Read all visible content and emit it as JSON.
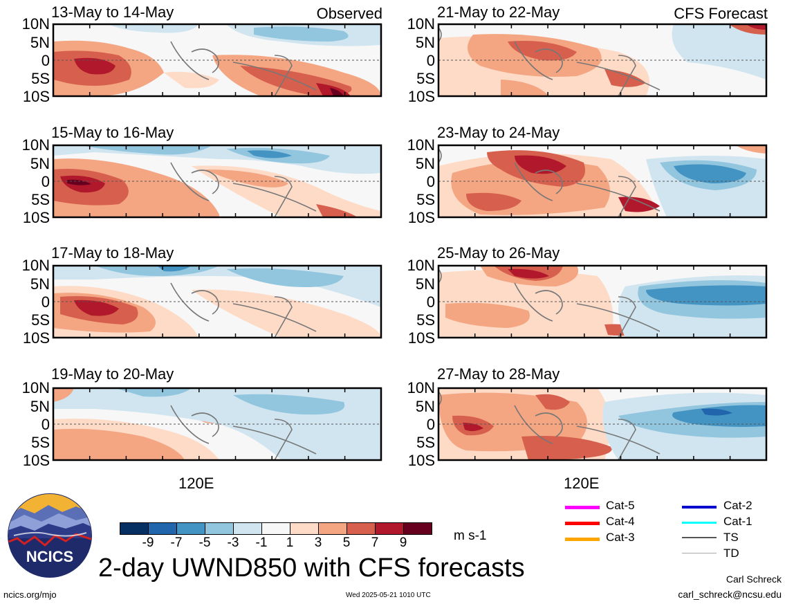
{
  "panels": [
    {
      "id": "obs1",
      "title": "13-May to 14-May",
      "tag": "Observed"
    },
    {
      "id": "obs2",
      "title": "15-May to 16-May",
      "tag": ""
    },
    {
      "id": "obs3",
      "title": "17-May to 18-May",
      "tag": ""
    },
    {
      "id": "obs4",
      "title": "19-May to 20-May",
      "tag": ""
    },
    {
      "id": "fc1",
      "title": "21-May to 22-May",
      "tag": "CFS Forecast"
    },
    {
      "id": "fc2",
      "title": "23-May to 24-May",
      "tag": ""
    },
    {
      "id": "fc3",
      "title": "25-May to 26-May",
      "tag": ""
    },
    {
      "id": "fc4",
      "title": "27-May to 28-May",
      "tag": ""
    }
  ],
  "lat_labels": [
    "10N",
    "5N",
    "0",
    "5S",
    "10S"
  ],
  "lon_label": "120E",
  "colorbar": {
    "colors": [
      "#053061",
      "#2166ac",
      "#4393c3",
      "#92c5de",
      "#d1e5f0",
      "#f7f7f7",
      "#fddbc7",
      "#f4a582",
      "#d6604d",
      "#b2182b",
      "#67001f"
    ],
    "ticks": [
      "-9",
      "-7",
      "-5",
      "-3",
      "-1",
      "1",
      "3",
      "5",
      "7",
      "9"
    ],
    "units": "m s-1"
  },
  "legend": [
    {
      "label": "Cat-5",
      "color": "#ff00ff"
    },
    {
      "label": "Cat-4",
      "color": "#ff0000"
    },
    {
      "label": "Cat-3",
      "color": "#ffa500"
    },
    {
      "label": "Cat-2",
      "color": "#0000cd"
    },
    {
      "label": "Cat-1",
      "color": "#00ffff"
    },
    {
      "label": "TS",
      "color": "#555555"
    },
    {
      "label": "TD",
      "color": "#aaaaaa"
    }
  ],
  "logo_text": "NCICS",
  "main_title": "2-day UWND850 with CFS forecasts",
  "footer": {
    "url": "ncics.org/mjo",
    "timestamp": "Wed 2025-05-21 1010 UTC",
    "author": "Carl Schreck",
    "email": "carl_schreck@ncsu.edu"
  }
}
